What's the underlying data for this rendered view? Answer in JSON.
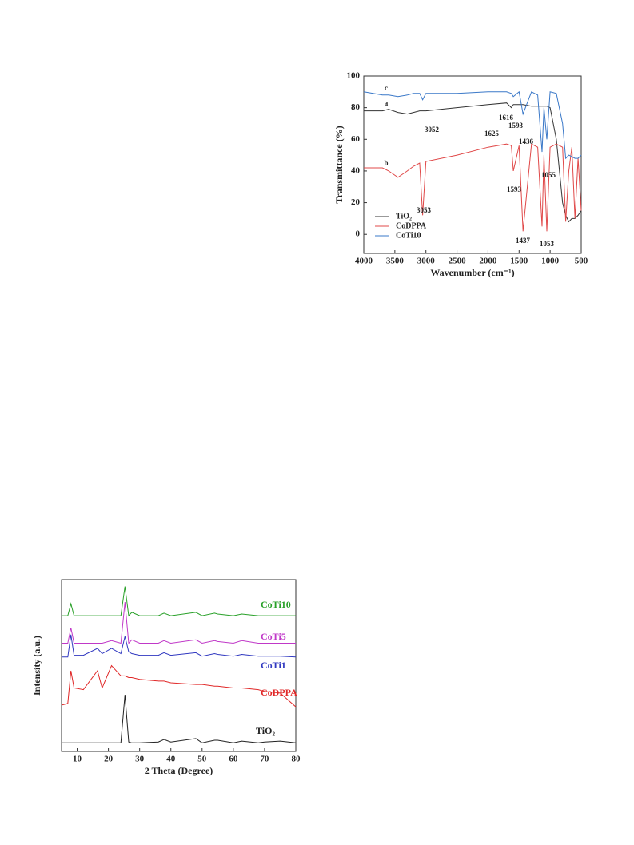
{
  "chart_data": [
    {
      "type": "line",
      "ylabel": "Transmittance (%)",
      "xlabel": "Wavenumber (cm⁻¹)",
      "x": [
        4000,
        3700,
        3600,
        3450,
        3300,
        3200,
        3100,
        3053,
        3000,
        2500,
        2000,
        1700,
        1625,
        1593,
        1500,
        1437,
        1300,
        1200,
        1130,
        1100,
        1053,
        1000,
        900,
        800,
        750,
        700,
        650,
        600,
        550,
        500
      ],
      "series": [
        {
          "name": "TiO₂",
          "color": "#333333",
          "values": [
            78,
            78,
            79,
            77,
            76,
            77,
            78,
            78,
            78,
            80,
            82,
            83,
            80,
            82,
            82,
            82,
            81,
            81,
            81,
            81,
            81,
            80,
            60,
            20,
            12,
            8,
            10,
            10,
            12,
            15
          ]
        },
        {
          "name": "CoDPPA",
          "color": "#e04848",
          "values": [
            42,
            42,
            40,
            36,
            40,
            43,
            45,
            12,
            46,
            50,
            55,
            57,
            56,
            40,
            56,
            2,
            57,
            55,
            5,
            50,
            2,
            55,
            57,
            55,
            8,
            40,
            55,
            10,
            48,
            15
          ]
        },
        {
          "name": "CoTi10",
          "color": "#3a78c8",
          "values": [
            90,
            88,
            88,
            87,
            88,
            89,
            89,
            85,
            89,
            89,
            90,
            90,
            89,
            87,
            90,
            76,
            90,
            88,
            52,
            80,
            60,
            90,
            89,
            70,
            48,
            50,
            49,
            48,
            48,
            50
          ]
        }
      ],
      "xlim": [
        4000,
        500
      ],
      "xticks": [
        4000,
        3500,
        3000,
        2500,
        2000,
        1500,
        1000,
        500
      ],
      "ylim": [
        -12,
        100
      ],
      "yticks": [
        0,
        20,
        40,
        60,
        80,
        100
      ],
      "legend": "lower left",
      "annotations": [
        "c",
        "a",
        "b",
        "3052",
        "1625",
        "1616",
        "1593",
        "1436",
        "1055",
        "3053",
        "1593",
        "1437",
        "1053"
      ]
    },
    {
      "type": "line",
      "ylabel": "Intensity (a.u.)",
      "xlabel": "2 Theta (Degree)",
      "x": [
        5,
        7,
        8,
        9,
        12,
        16.5,
        18,
        21,
        24,
        25.3,
        26.5,
        27.5,
        30,
        36,
        37.8,
        40,
        48,
        50,
        54,
        55,
        60,
        62.7,
        68,
        70,
        75,
        80
      ],
      "series": [
        {
          "name": "TiO₂",
          "color": "#222222",
          "values": [
            5,
            5,
            5,
            5,
            5,
            5,
            5,
            5,
            5,
            33,
            5.5,
            5,
            5,
            5.5,
            7,
            5.5,
            7.5,
            5,
            6.5,
            6.5,
            5,
            6,
            5,
            5.5,
            6,
            5
          ]
        },
        {
          "name": "CoDPPA",
          "color": "#e02828",
          "values": [
            27,
            28,
            47,
            37,
            36,
            47,
            37,
            50,
            44,
            44,
            43,
            43,
            42,
            41,
            41,
            40,
            39,
            39,
            38,
            38,
            37,
            37,
            36,
            35,
            34,
            26
          ]
        },
        {
          "name": "CoTi1",
          "color": "#3038c0",
          "values": [
            55,
            55,
            68,
            56,
            56,
            60,
            57,
            60,
            57,
            67,
            58,
            57,
            56,
            56,
            57.5,
            56,
            57.5,
            55.5,
            57,
            56.5,
            55.5,
            56.5,
            55.5,
            55.5,
            55.5,
            55
          ]
        },
        {
          "name": "CoTi5",
          "color": "#c038c8",
          "values": [
            63,
            63,
            72,
            63,
            63,
            63,
            63,
            64.5,
            63,
            87,
            63,
            65,
            63,
            63,
            64.5,
            63,
            65,
            63,
            64.5,
            64,
            63,
            64.5,
            63,
            63,
            63,
            63
          ]
        },
        {
          "name": "CoTi10",
          "color": "#28a028",
          "values": [
            79,
            79,
            86,
            79,
            79,
            79,
            79,
            79,
            79,
            96,
            79,
            81,
            79,
            79,
            80.5,
            79,
            81,
            79,
            80.5,
            80,
            79,
            80,
            79,
            79,
            79,
            79
          ]
        }
      ],
      "xlim": [
        5,
        80
      ],
      "xticks": [
        10,
        20,
        30,
        40,
        50,
        60,
        70,
        80
      ],
      "ylim": [
        0,
        100
      ],
      "legend": "inline"
    }
  ]
}
